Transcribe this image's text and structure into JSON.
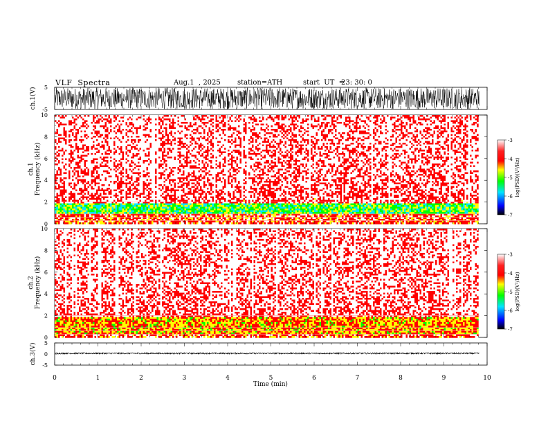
{
  "header": {
    "title": "VLF  Spectra",
    "date": "Aug.1  , 2025",
    "station": "station=ATH",
    "start_label": "start  UT  =",
    "start_time": "23: 30: 0"
  },
  "chart_data": [
    {
      "type": "line",
      "panel": "ch1-waveform",
      "ylabel": "ch.1(V)",
      "ylim": [
        -5,
        5
      ],
      "yticks": [
        "5",
        "-5"
      ],
      "xlim": [
        0,
        10
      ],
      "x_extent": [
        0,
        9.82
      ],
      "amplitude_v": 4.8
    },
    {
      "type": "heatmap",
      "panel": "ch1-spectrogram",
      "ylabel_lines": [
        "ch.1",
        "Frequency  (kHz)"
      ],
      "ylim": [
        0,
        10
      ],
      "yticks": [
        "0",
        "2",
        "4",
        "6",
        "8",
        "10"
      ],
      "xlim": [
        0,
        10
      ],
      "x_extent": [
        0,
        9.82
      ],
      "colorbar": {
        "label": "log(PSD)(V²/Hz)",
        "range": [
          -7,
          -3
        ],
        "ticks": [
          "-3",
          "-4",
          "-5",
          "-6",
          "-7"
        ]
      },
      "features": {
        "background_level": -3.6,
        "band_khz": [
          1.0,
          2.0
        ],
        "band_level": -5.0
      }
    },
    {
      "type": "heatmap",
      "panel": "ch2-spectrogram",
      "ylabel_lines": [
        "ch.2",
        "Frequency  (kHz)"
      ],
      "ylim": [
        0,
        10
      ],
      "yticks": [
        "0",
        "2",
        "4",
        "6",
        "8",
        "10"
      ],
      "xlim": [
        0,
        10
      ],
      "x_extent": [
        0,
        9.82
      ],
      "colorbar": {
        "label": "log(PSD)(V²/Hz)",
        "range": [
          -7,
          -3
        ],
        "ticks": [
          "-3",
          "-4",
          "-5",
          "-6",
          "-7"
        ]
      },
      "features": {
        "background_level": -3.6,
        "band_khz": [
          0.3,
          2.0
        ],
        "band_level": -4.4
      }
    },
    {
      "type": "line",
      "panel": "ch3-waveform",
      "ylabel": "ch.3(V)",
      "ylim": [
        -5,
        5
      ],
      "yticks": [
        "5",
        "0",
        "-5"
      ],
      "xlim": [
        0,
        10
      ],
      "x_extent": [
        0,
        9.82
      ],
      "offset_v": 0.3,
      "amplitude_v": 0.3,
      "xlabel": "Time  (min)",
      "xticks": [
        "0",
        "1",
        "2",
        "3",
        "4",
        "5",
        "6",
        "7",
        "8",
        "9",
        "10"
      ]
    }
  ],
  "colors": {
    "waveform": "#000000",
    "colormap": [
      "#000000",
      "#0000ff",
      "#00e5ff",
      "#00ff00",
      "#ffff00",
      "#ff0000",
      "#ffffff"
    ]
  }
}
